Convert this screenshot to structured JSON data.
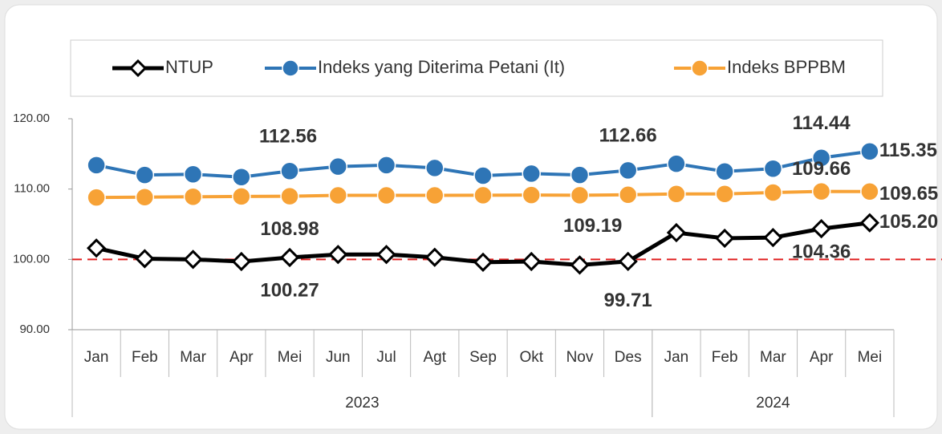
{
  "chart_data": {
    "type": "line",
    "category_groups": [
      {
        "label": "2023",
        "categories": [
          "Jan",
          "Feb",
          "Mar",
          "Apr",
          "Mei",
          "Jun",
          "Jul",
          "Agt",
          "Sep",
          "Okt",
          "Nov",
          "Des"
        ]
      },
      {
        "label": "2024",
        "categories": [
          "Jan",
          "Feb",
          "Mar",
          "Apr",
          "Mei"
        ]
      }
    ],
    "series": [
      {
        "name": "NTUP",
        "color": "#000000",
        "marker": "diamond",
        "values": [
          101.6,
          100.1,
          100.0,
          99.7,
          100.27,
          100.7,
          100.7,
          100.3,
          99.6,
          99.7,
          99.2,
          99.71,
          103.8,
          103.0,
          103.1,
          104.36,
          105.2
        ],
        "value_labels": [
          null,
          null,
          null,
          null,
          "100.27",
          null,
          null,
          null,
          null,
          null,
          null,
          "99.71",
          null,
          null,
          null,
          "104.36",
          "105.20"
        ],
        "label_color": "#404040"
      },
      {
        "name": "Indeks yang Diterima Petani (It)",
        "color": "#2e75b6",
        "marker": "circle",
        "values": [
          113.4,
          112.0,
          112.1,
          111.7,
          112.56,
          113.2,
          113.4,
          113.0,
          111.9,
          112.2,
          112.0,
          112.66,
          113.6,
          112.5,
          112.9,
          114.44,
          115.35
        ],
        "value_labels": [
          null,
          null,
          null,
          null,
          "112.56",
          null,
          null,
          null,
          null,
          null,
          null,
          "112.66",
          null,
          null,
          null,
          "114.44",
          "115.35"
        ],
        "label_color": "#0070c0"
      },
      {
        "name": "Indeks BPPBM",
        "color": "#f7a236",
        "marker": "circle",
        "values": [
          108.8,
          108.85,
          108.9,
          108.95,
          108.98,
          109.1,
          109.1,
          109.1,
          109.12,
          109.15,
          109.12,
          109.19,
          109.3,
          109.3,
          109.5,
          109.66,
          109.65
        ],
        "value_labels": [
          null,
          null,
          null,
          null,
          "108.98",
          null,
          null,
          null,
          null,
          null,
          null,
          "109.19",
          null,
          null,
          null,
          "109.66",
          "109.65"
        ],
        "label_color": "#ffc000"
      }
    ],
    "ylim": [
      90,
      120
    ],
    "yticks": [
      {
        "value": 90,
        "label": "90.00"
      },
      {
        "value": 100,
        "label": "100.00"
      },
      {
        "value": 110,
        "label": "110.00"
      },
      {
        "value": 120,
        "label": "120.00"
      }
    ],
    "reference_line": 100,
    "reference_color": "#e02020",
    "legend": "top"
  }
}
